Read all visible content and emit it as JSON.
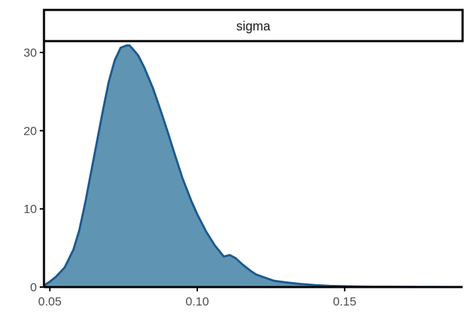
{
  "chart_data": {
    "type": "area",
    "panel_title": "sigma",
    "xlabel": "",
    "ylabel": "",
    "xlim": [
      0.048,
      0.19
    ],
    "ylim": [
      0,
      31
    ],
    "x_ticks": [
      0.05,
      0.1,
      0.15
    ],
    "x_tick_labels": [
      "0.05",
      "0.10",
      "0.15"
    ],
    "y_ticks": [
      0,
      10,
      20,
      30
    ],
    "y_tick_labels": [
      "0",
      "10",
      "20",
      "30"
    ],
    "grid": false,
    "fill_color": "#5f95b2",
    "line_color": "#1c5a8d",
    "series": [
      {
        "x": [
          0.048,
          0.05,
          0.052,
          0.055,
          0.058,
          0.06,
          0.062,
          0.065,
          0.068,
          0.07,
          0.072,
          0.074,
          0.076,
          0.077,
          0.078,
          0.08,
          0.082,
          0.085,
          0.088,
          0.09,
          0.092,
          0.095,
          0.098,
          0.1,
          0.103,
          0.106,
          0.109,
          0.111,
          0.113,
          0.115,
          0.118,
          0.12,
          0.123,
          0.126,
          0.13,
          0.135,
          0.14,
          0.145,
          0.15,
          0.155,
          0.16,
          0.165,
          0.17,
          0.175,
          0.18,
          0.185,
          0.19
        ],
        "y": [
          0.2,
          0.7,
          1.3,
          2.5,
          4.8,
          7.3,
          10.8,
          16.7,
          22.6,
          26.3,
          29.0,
          30.6,
          30.9,
          30.9,
          30.5,
          29.6,
          28.1,
          25.4,
          22.1,
          19.8,
          17.4,
          13.9,
          11.0,
          9.3,
          7.1,
          5.3,
          3.9,
          4.1,
          3.7,
          3.0,
          2.1,
          1.6,
          1.2,
          0.8,
          0.6,
          0.4,
          0.25,
          0.15,
          0.1,
          0.07,
          0.05,
          0.04,
          0.03,
          0.02,
          0.02,
          0.01,
          0.01
        ]
      }
    ]
  }
}
